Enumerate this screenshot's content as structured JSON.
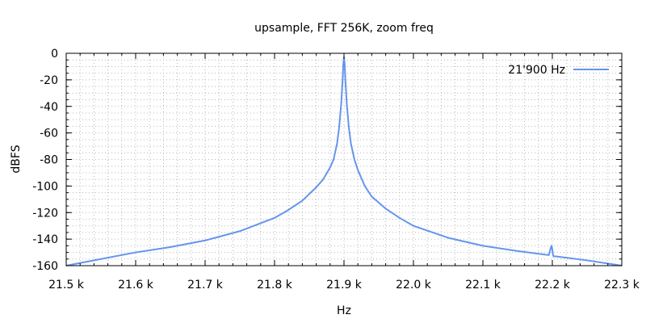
{
  "chart_data": {
    "type": "line",
    "title": "upsample, FFT 256K, zoom freq",
    "xlabel": "Hz",
    "ylabel": "dBFS",
    "xlim": [
      21500,
      22300
    ],
    "ylim": [
      -160,
      0
    ],
    "x_ticks": [
      21500,
      21600,
      21700,
      21800,
      21900,
      22000,
      22100,
      22200,
      22300
    ],
    "x_tick_labels": [
      "21.5 k",
      "21.6 k",
      "21.7 k",
      "21.8 k",
      "21.9 k",
      "22.0 k",
      "22.1 k",
      "22.2 k",
      "22.3 k"
    ],
    "y_ticks": [
      0,
      -20,
      -40,
      -60,
      -80,
      -100,
      -120,
      -140,
      -160
    ],
    "y_tick_labels": [
      "0",
      "-20",
      "-40",
      "-60",
      "-80",
      "-100",
      "-120",
      "-140",
      "-160"
    ],
    "grid": true,
    "legend_position": "top-right",
    "series": [
      {
        "name": "21'900 Hz",
        "color": "#6495ed",
        "x": [
          21500,
          21550,
          21600,
          21650,
          21700,
          21750,
          21800,
          21820,
          21840,
          21860,
          21870,
          21880,
          21885,
          21890,
          21893,
          21896,
          21898,
          21899,
          21900,
          21901,
          21902,
          21904,
          21907,
          21910,
          21915,
          21920,
          21930,
          21940,
          21960,
          21980,
          22000,
          22050,
          22100,
          22150,
          22180,
          22195,
          22198,
          22199,
          22200,
          22201,
          22202,
          22205,
          22220,
          22250,
          22300
        ],
        "y": [
          -160,
          -155,
          -150,
          -146,
          -141,
          -134,
          -124,
          -118,
          -111,
          -101,
          -95,
          -86,
          -80,
          -68,
          -56,
          -38,
          -20,
          -8,
          -3,
          -8,
          -20,
          -38,
          -56,
          -68,
          -80,
          -88,
          -100,
          -108,
          -117,
          -124,
          -130,
          -139,
          -145,
          -149,
          -151,
          -152,
          -146,
          -145,
          -148,
          -152,
          -153,
          -153,
          -154,
          -156,
          -160
        ]
      }
    ]
  }
}
